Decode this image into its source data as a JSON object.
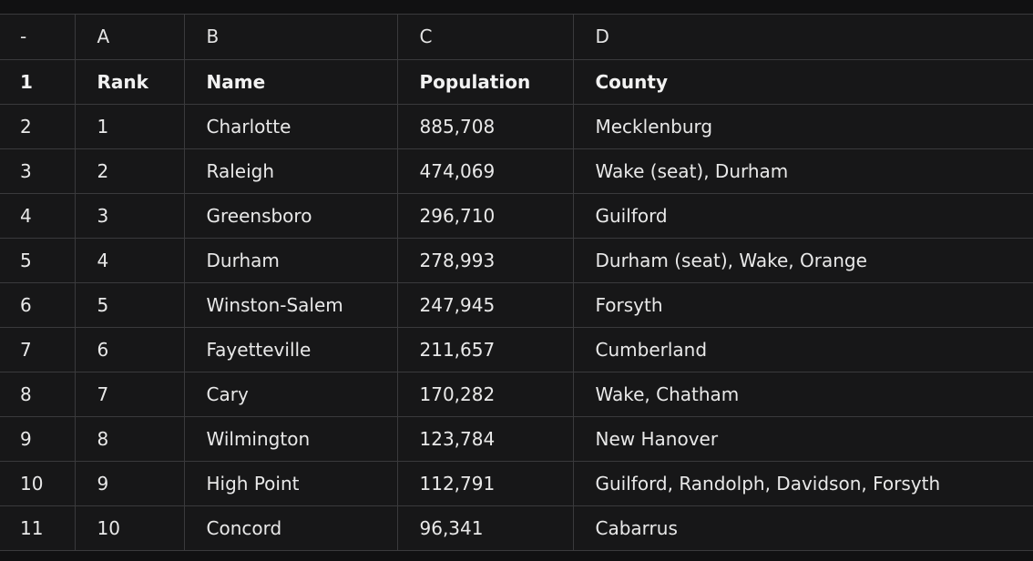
{
  "columns": [
    "-",
    "A",
    "B",
    "C",
    "D"
  ],
  "header": {
    "index": "1",
    "rank": "Rank",
    "name": "Name",
    "population": "Population",
    "county": "County"
  },
  "rows": [
    {
      "index": "2",
      "rank": "1",
      "name": "Charlotte",
      "population": "885,708",
      "county": "Mecklenburg"
    },
    {
      "index": "3",
      "rank": "2",
      "name": "Raleigh",
      "population": "474,069",
      "county": "Wake (seat), Durham"
    },
    {
      "index": "4",
      "rank": "3",
      "name": "Greensboro",
      "population": "296,710",
      "county": "Guilford"
    },
    {
      "index": "5",
      "rank": "4",
      "name": "Durham",
      "population": "278,993",
      "county": "Durham (seat), Wake, Orange"
    },
    {
      "index": "6",
      "rank": "5",
      "name": "Winston-Salem",
      "population": "247,945",
      "county": "Forsyth"
    },
    {
      "index": "7",
      "rank": "6",
      "name": "Fayetteville",
      "population": "211,657",
      "county": "Cumberland"
    },
    {
      "index": "8",
      "rank": "7",
      "name": "Cary",
      "population": "170,282",
      "county": "Wake, Chatham"
    },
    {
      "index": "9",
      "rank": "8",
      "name": "Wilmington",
      "population": "123,784",
      "county": "New Hanover"
    },
    {
      "index": "10",
      "rank": "9",
      "name": "High Point",
      "population": "112,791",
      "county": "Guilford, Randolph, Davidson, Forsyth"
    },
    {
      "index": "11",
      "rank": "10",
      "name": "Concord",
      "population": "96,341",
      "county": "Cabarrus"
    }
  ]
}
